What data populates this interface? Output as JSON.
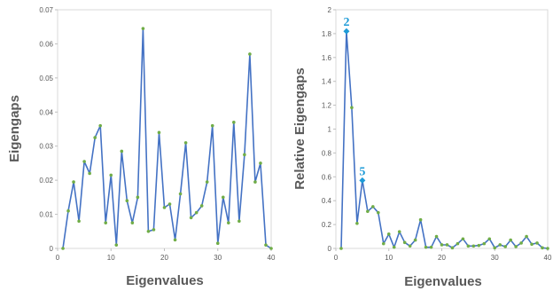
{
  "chart_data": [
    {
      "type": "line",
      "title": "",
      "xlabel": "Eigenvalues",
      "ylabel": "Eigengaps",
      "xlim": [
        0,
        40
      ],
      "ylim": [
        0,
        0.07
      ],
      "x_ticks": [
        0,
        10,
        20,
        30,
        40
      ],
      "y_ticks": [
        0,
        0.01,
        0.02,
        0.03,
        0.04,
        0.05,
        0.06,
        0.07
      ],
      "y_tick_labels": [
        "0",
        "0.01",
        "0.02",
        "0.03",
        "0.04",
        "0.05",
        "0.06",
        "0.07"
      ],
      "grid": false,
      "line_color": "#4472C4",
      "marker_color": "#70AD47",
      "series": [
        {
          "x": [
            1,
            2,
            3,
            4,
            5,
            6,
            7,
            8,
            9,
            10,
            11,
            12,
            13,
            14,
            15,
            16,
            17,
            18,
            19,
            20,
            21,
            22,
            23,
            24,
            25,
            26,
            27,
            28,
            29,
            30,
            31,
            32,
            33,
            34,
            35,
            36,
            37,
            38,
            39,
            40
          ],
          "values": [
            0,
            0.011,
            0.0195,
            0.008,
            0.0255,
            0.022,
            0.0325,
            0.036,
            0.0075,
            0.0215,
            0.001,
            0.0285,
            0.014,
            0.0075,
            0.015,
            0.0645,
            0.005,
            0.0055,
            0.034,
            0.012,
            0.013,
            0.0025,
            0.016,
            0.031,
            0.009,
            0.0105,
            0.0125,
            0.0195,
            0.036,
            0.0015,
            0.015,
            0.0075,
            0.037,
            0.008,
            0.0275,
            0.057,
            0.0195,
            0.025,
            0.001,
            0
          ]
        }
      ]
    },
    {
      "type": "line",
      "title": "",
      "xlabel": "Eigenvalues",
      "ylabel": "Relative Eigengaps",
      "xlim": [
        0,
        40
      ],
      "ylim": [
        0,
        2
      ],
      "x_ticks": [
        0,
        10,
        20,
        30,
        40
      ],
      "y_ticks": [
        0,
        0.2,
        0.4,
        0.6,
        0.8,
        1,
        1.2,
        1.4,
        1.6,
        1.8,
        2
      ],
      "y_tick_labels": [
        "0",
        "0.2",
        "0.4",
        "0.6",
        "0.8",
        "1",
        "1.2",
        "1.4",
        "1.6",
        "1.8",
        "2"
      ],
      "grid": false,
      "line_color": "#4472C4",
      "marker_color": "#70AD47",
      "highlight_color": "#1E9BD7",
      "annotations": [
        {
          "text": "2",
          "x": 2,
          "y": 1.82
        },
        {
          "text": "5",
          "x": 5,
          "y": 0.57
        }
      ],
      "series": [
        {
          "x": [
            1,
            2,
            3,
            4,
            5,
            6,
            7,
            8,
            9,
            10,
            11,
            12,
            13,
            14,
            15,
            16,
            17,
            18,
            19,
            20,
            21,
            22,
            23,
            24,
            25,
            26,
            27,
            28,
            29,
            30,
            31,
            32,
            33,
            34,
            35,
            36,
            37,
            38,
            39,
            40
          ],
          "values": [
            0,
            1.82,
            1.18,
            0.21,
            0.57,
            0.31,
            0.35,
            0.3,
            0.04,
            0.12,
            0.01,
            0.14,
            0.05,
            0.02,
            0.07,
            0.24,
            0.01,
            0.01,
            0.1,
            0.03,
            0.03,
            0.005,
            0.04,
            0.08,
            0.02,
            0.02,
            0.025,
            0.04,
            0.08,
            0.005,
            0.03,
            0.015,
            0.07,
            0.015,
            0.045,
            0.1,
            0.035,
            0.045,
            0.005,
            0
          ]
        }
      ]
    }
  ]
}
